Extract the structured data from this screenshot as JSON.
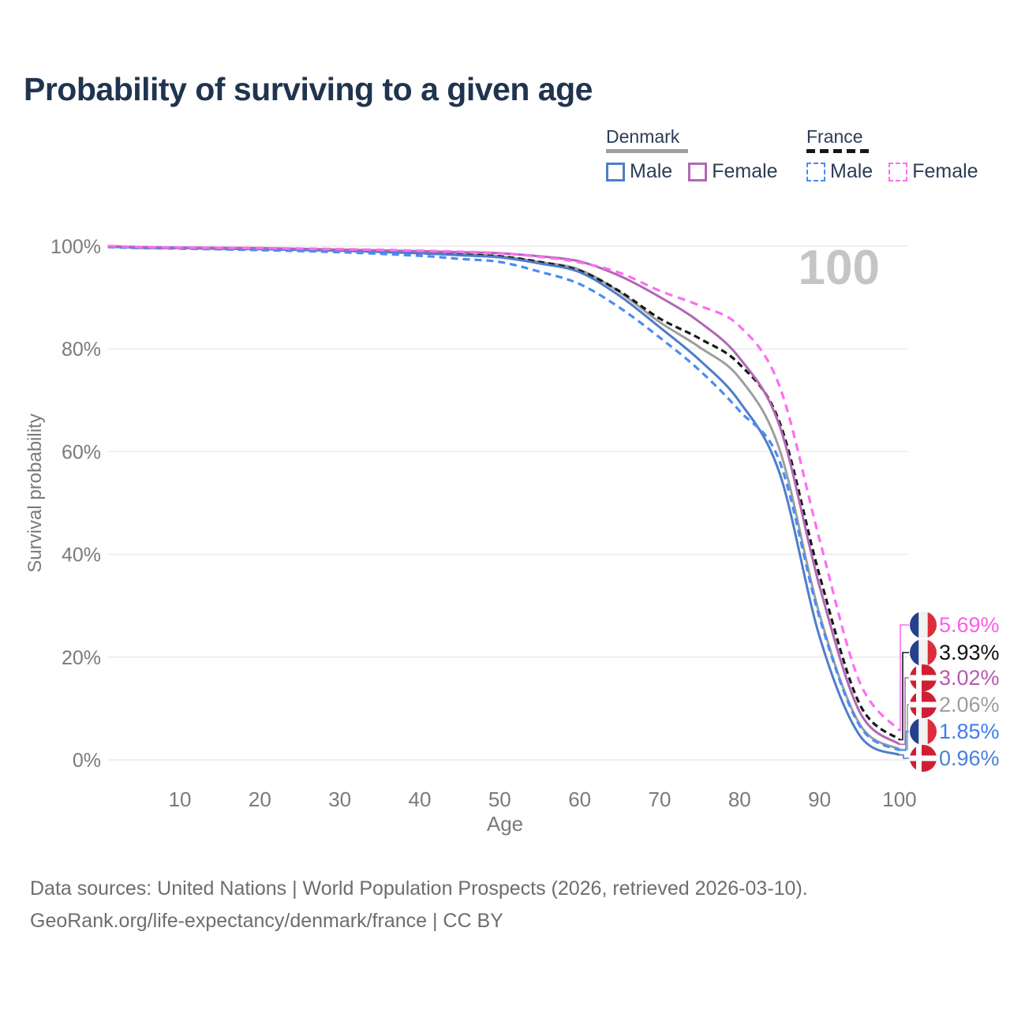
{
  "header": {
    "title": "Probability of surviving to a given age"
  },
  "legend": {
    "groups": [
      {
        "id": "denmark",
        "label": "Denmark",
        "line_style": "solid",
        "line_color": "#9e9e9e",
        "items": [
          {
            "label": "Male",
            "color": "#4e7dca",
            "dashed": false
          },
          {
            "label": "Female",
            "color": "#b168b5",
            "dashed": false
          }
        ]
      },
      {
        "id": "france",
        "label": "France",
        "line_style": "dashed",
        "line_color": "#161616",
        "items": [
          {
            "label": "Male",
            "color": "#4a8cf5",
            "dashed": true
          },
          {
            "label": "Female",
            "color": "#fc6ef2",
            "dashed": true
          }
        ]
      }
    ]
  },
  "chart_data": {
    "type": "line",
    "title": "Probability of surviving to a given age",
    "xlabel": "Age",
    "ylabel": "Survival probability",
    "watermark": "100",
    "xlim": [
      1,
      109
    ],
    "ylim": [
      0,
      100
    ],
    "grid": true,
    "x_ticks": [
      10,
      20,
      30,
      40,
      50,
      60,
      70,
      80,
      90,
      100
    ],
    "y_tick_values": [
      0,
      20,
      40,
      60,
      80,
      100
    ],
    "y_tick_labels": [
      "0%",
      "20%",
      "40%",
      "60%",
      "80%",
      "100%"
    ],
    "x": [
      1,
      5,
      10,
      20,
      30,
      40,
      45,
      50,
      55,
      60,
      65,
      70,
      75,
      80,
      85,
      90,
      95,
      100
    ],
    "series": [
      {
        "id": "france-female",
        "name": "France Female",
        "country": "FR",
        "style": "dashed",
        "color": "#fc6ef2",
        "label_color": "#fc5ce8",
        "dash": [
          10,
          7
        ],
        "end_label": "5.69%",
        "values": [
          100,
          99.8,
          99.7,
          99.6,
          99.4,
          99.1,
          98.9,
          98.6,
          97.9,
          96.8,
          94.8,
          91.3,
          88.4,
          84.4,
          72.7,
          42.9,
          15.2,
          5.69
        ]
      },
      {
        "id": "france-total",
        "name": "France",
        "country": "FR",
        "style": "dashed",
        "color": "#191919",
        "label_color": "#111111",
        "dash": [
          8,
          5
        ],
        "end_label": "3.93%",
        "values": [
          99.9,
          99.7,
          99.6,
          99.4,
          99.1,
          98.6,
          98.3,
          98.0,
          96.9,
          95.2,
          91.2,
          85.9,
          82.0,
          77.0,
          65.7,
          35.9,
          10.9,
          3.93
        ]
      },
      {
        "id": "denmark-female",
        "name": "Denmark Female",
        "country": "DK",
        "style": "solid",
        "color": "#b168b5",
        "label_color": "#b45cae",
        "dash": null,
        "end_label": "3.02%",
        "values": [
          100,
          99.8,
          99.7,
          99.6,
          99.3,
          99.0,
          98.8,
          98.6,
          98.0,
          97.0,
          94.2,
          90.1,
          85.2,
          78.2,
          65.0,
          33.8,
          9.4,
          3.02
        ]
      },
      {
        "id": "denmark-total",
        "name": "Denmark",
        "country": "DK",
        "style": "solid",
        "color": "#9e9e9e",
        "label_color": "#9e9e9e",
        "dash": null,
        "end_label": "2.06%",
        "values": [
          99.9,
          99.7,
          99.6,
          99.5,
          99.2,
          98.8,
          98.4,
          98.0,
          96.9,
          95.4,
          91.0,
          85.2,
          80.3,
          74.3,
          60.4,
          28.3,
          7.0,
          2.06
        ]
      },
      {
        "id": "france-male",
        "name": "France Male",
        "country": "FR",
        "style": "dashed",
        "color": "#4a8cf5",
        "label_color": "#3f7ef0",
        "dash": [
          9,
          6
        ],
        "end_label": "1.85%",
        "values": [
          99.8,
          99.6,
          99.5,
          99.2,
          98.8,
          98.1,
          97.5,
          96.9,
          95.0,
          92.6,
          88.0,
          82.2,
          75.8,
          67.9,
          58.1,
          27.7,
          6.7,
          1.85
        ]
      },
      {
        "id": "denmark-male",
        "name": "Denmark Male",
        "country": "DK",
        "style": "solid",
        "color": "#4e7dca",
        "label_color": "#4a80d8",
        "dash": null,
        "end_label": "0.96%",
        "values": [
          99.9,
          99.7,
          99.6,
          99.4,
          99.1,
          98.6,
          98.2,
          97.8,
          96.6,
          94.9,
          90.3,
          84.2,
          77.8,
          69.7,
          55.8,
          24.0,
          4.8,
          0.96
        ]
      }
    ],
    "flag_colors": {
      "FR": {
        "blue": "#24408e",
        "white": "#f2f2f2",
        "red": "#dc2d3c"
      },
      "DK": {
        "red": "#cf1f34",
        "white": "#ffffff"
      }
    }
  },
  "footer": {
    "line1": "Data sources: United Nations | World Population Prospects (2026, retrieved 2026-03-10).",
    "line2": "GeoRank.org/life-expectancy/denmark/france | CC BY"
  }
}
